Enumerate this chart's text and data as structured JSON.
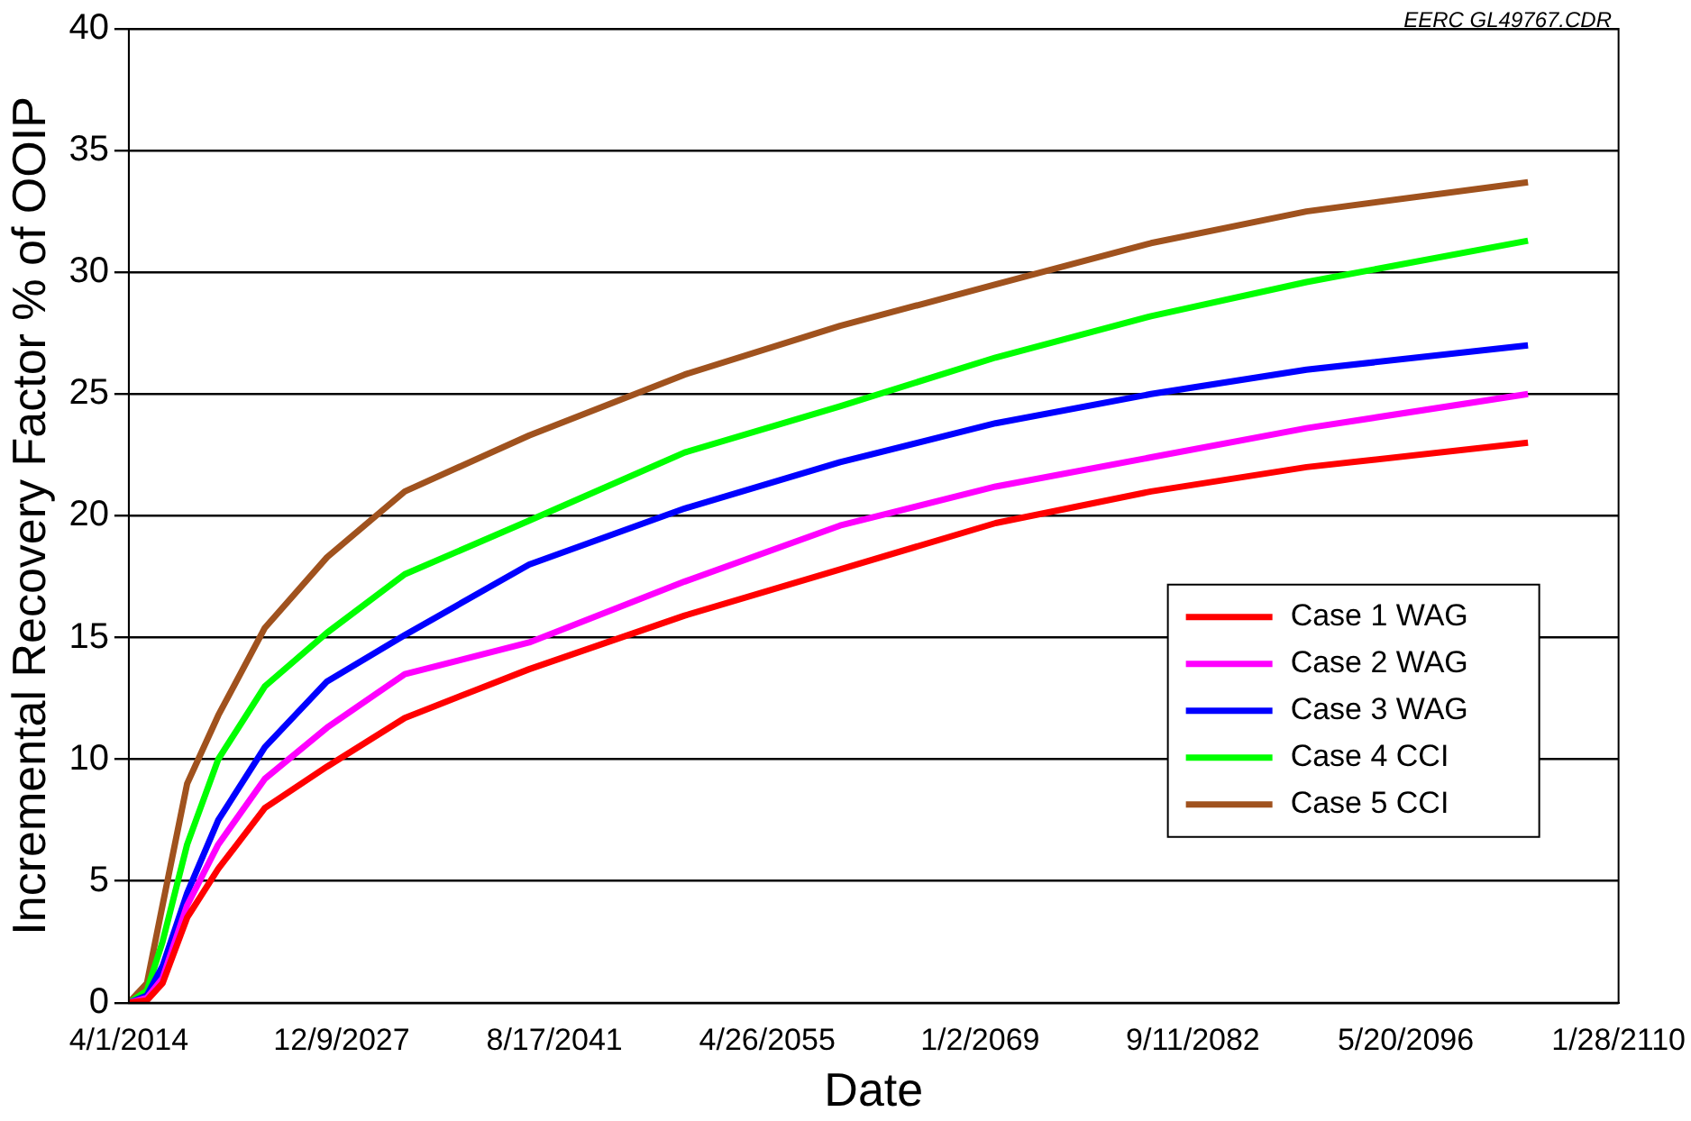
{
  "chart_data": {
    "type": "line",
    "xlabel": "Date",
    "ylabel": "Incremental Recovery Factor % of OOIP",
    "annotations": [
      "EERC GL49767.CDR"
    ],
    "x": [
      "2014-04-01",
      "2015-06-01",
      "2016-06-01",
      "2018-01-01",
      "2020-01-01",
      "2023-01-01",
      "2027-01-01",
      "2032-01-01",
      "2040-01-01",
      "2050-01-01",
      "2060-01-01",
      "2070-01-01",
      "2080-01-01",
      "2090-01-01",
      "2104-04-01"
    ],
    "series": [
      {
        "name": "Case 1 WAG",
        "color": "#ff0000",
        "values": [
          0,
          0.1,
          0.8,
          3.5,
          5.5,
          8,
          9.7,
          11.7,
          13.7,
          15.9,
          17.8,
          19.7,
          21,
          22,
          23
        ]
      },
      {
        "name": "Case 2 WAG",
        "color": "#ff00ff",
        "values": [
          0,
          0.2,
          1,
          4,
          6.5,
          9.2,
          11.3,
          13.5,
          14.8,
          17.3,
          19.6,
          21.2,
          22.4,
          23.6,
          25
        ]
      },
      {
        "name": "Case 3 WAG",
        "color": "#0000ff",
        "values": [
          0,
          0.3,
          1.5,
          4.5,
          7.5,
          10.5,
          13.2,
          15.1,
          18,
          20.3,
          22.2,
          23.8,
          25,
          26,
          27
        ]
      },
      {
        "name": "Case 4 CCI",
        "color": "#00ff00",
        "values": [
          0,
          0.5,
          2.5,
          6.5,
          10,
          13,
          15.2,
          17.6,
          19.8,
          22.6,
          24.5,
          26.5,
          28.2,
          29.6,
          31.3
        ]
      },
      {
        "name": "Case 5 CCI",
        "color": "#a0521e",
        "values": [
          0,
          0.8,
          4,
          9,
          11.8,
          15.4,
          18.3,
          21,
          23.3,
          25.8,
          27.8,
          29.5,
          31.2,
          32.5,
          33.7
        ]
      }
    ],
    "xlim": [
      "2014-04-01",
      "2110-01-28"
    ],
    "xticks": [
      {
        "value": "2014-04-01",
        "label": "4/1/2014"
      },
      {
        "value": "2027-12-09",
        "label": "12/9/2027"
      },
      {
        "value": "2041-08-17",
        "label": "8/17/2041"
      },
      {
        "value": "2055-04-26",
        "label": "4/26/2055"
      },
      {
        "value": "2069-01-02",
        "label": "1/2/2069"
      },
      {
        "value": "2082-09-11",
        "label": "9/11/2082"
      },
      {
        "value": "2096-05-20",
        "label": "5/20/2096"
      },
      {
        "value": "2110-01-28",
        "label": "1/28/2110"
      }
    ],
    "ylim": [
      0,
      40
    ],
    "yticks": [
      0,
      5,
      10,
      15,
      20,
      25,
      30,
      35,
      40
    ],
    "grid": "y",
    "legend": "bottom right",
    "marker": "none",
    "line_style": "solid"
  }
}
